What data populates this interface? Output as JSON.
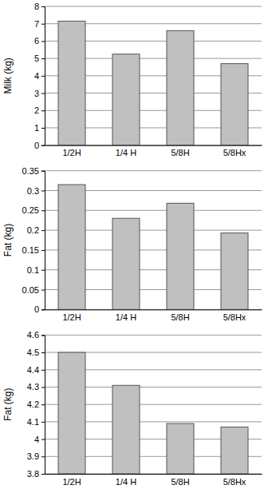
{
  "chart_data": [
    {
      "type": "bar",
      "y_label": "Milk (kg)",
      "categories": [
        "1/2H",
        "1/4 H",
        "5/8H",
        "5/8Hx"
      ],
      "values": [
        7.15,
        5.25,
        6.6,
        4.7
      ],
      "color": "#c0c0c0",
      "ylim": [
        0,
        8
      ],
      "yticks": [
        0,
        1,
        2,
        3,
        4,
        5,
        6,
        7,
        8
      ],
      "grid": true
    },
    {
      "type": "bar",
      "y_label": "Fat (kg)",
      "categories": [
        "1/2H",
        "1/4 H",
        "5/8H",
        "5/8Hx"
      ],
      "values": [
        0.315,
        0.23,
        0.268,
        0.193
      ],
      "color": "#c0c0c0",
      "ylim": [
        0,
        0.35
      ],
      "yticks": [
        0,
        0.05,
        0.1,
        0.15,
        0.2,
        0.25,
        0.3,
        0.35
      ],
      "grid": true
    },
    {
      "type": "bar",
      "y_label": "Fat (kg)",
      "categories": [
        "1/2H",
        "1/4 H",
        "5/8H",
        "5/8Hx"
      ],
      "values": [
        4.5,
        4.31,
        4.09,
        4.07
      ],
      "color": "#c0c0c0",
      "ylim": [
        3.8,
        4.6
      ],
      "yticks": [
        3.8,
        3.9,
        4,
        4.1,
        4.2,
        4.3,
        4.4,
        4.5,
        4.6
      ],
      "grid": true
    }
  ]
}
